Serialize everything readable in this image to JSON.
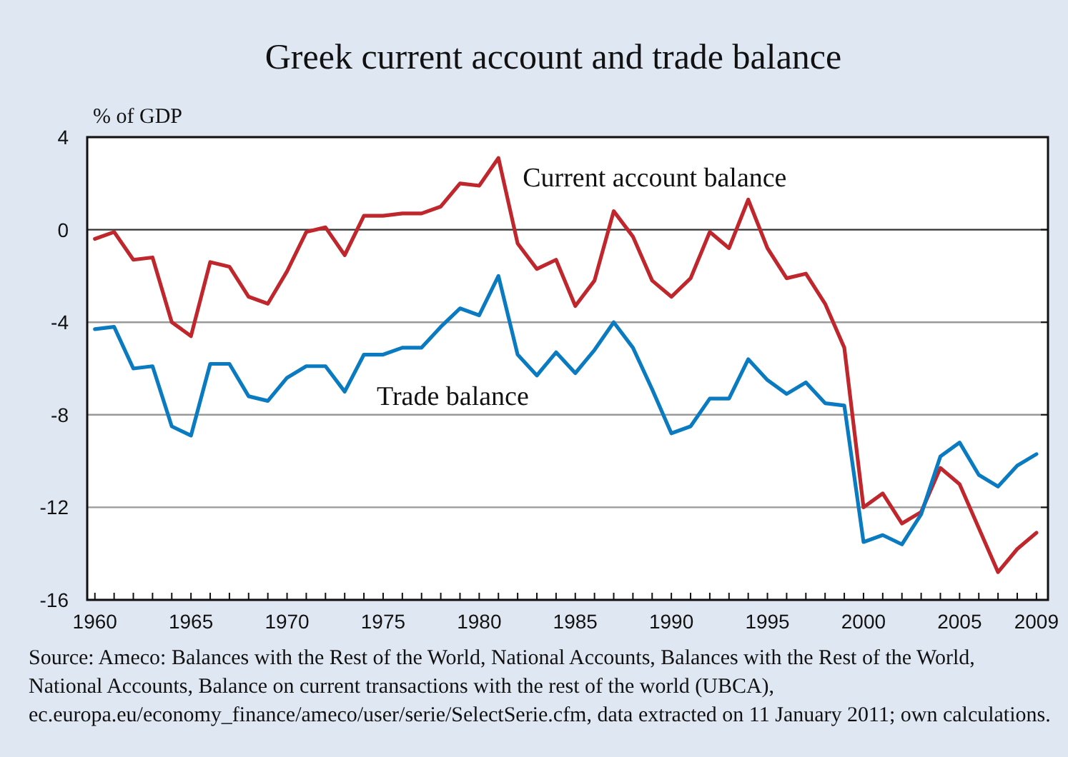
{
  "chart_data": {
    "type": "line",
    "title": "Greek current account and trade balance",
    "ylabel": "% of GDP",
    "x": [
      1960,
      1961,
      1962,
      1963,
      1964,
      1965,
      1966,
      1967,
      1968,
      1969,
      1970,
      1971,
      1972,
      1973,
      1974,
      1975,
      1976,
      1977,
      1978,
      1979,
      1980,
      1981,
      1982,
      1983,
      1984,
      1985,
      1986,
      1987,
      1988,
      1989,
      1990,
      1991,
      1992,
      1993,
      1994,
      1995,
      1996,
      1997,
      1998,
      1999,
      2000,
      2001,
      2002,
      2003,
      2004,
      2005,
      2006,
      2007,
      2008,
      2009
    ],
    "series": [
      {
        "name": "Current account balance",
        "color": "#c0272d",
        "values": [
          -0.4,
          -0.1,
          -1.3,
          -1.2,
          -4.0,
          -4.6,
          -1.4,
          -1.6,
          -2.9,
          -3.2,
          -1.8,
          -0.1,
          0.1,
          -1.1,
          0.6,
          0.6,
          0.7,
          0.7,
          1.0,
          2.0,
          1.9,
          3.1,
          -0.6,
          -1.7,
          -1.3,
          -3.3,
          -2.2,
          0.8,
          -0.3,
          -2.2,
          -2.9,
          -2.1,
          -0.1,
          -0.8,
          1.3,
          -0.8,
          -2.1,
          -1.9,
          -3.2,
          -5.1,
          -12.0,
          -11.4,
          -12.7,
          -12.2,
          -10.3,
          -11.0,
          -12.9,
          -14.8,
          -13.8,
          -13.1
        ]
      },
      {
        "name": "Trade balance",
        "color": "#0a7bc1",
        "values": [
          -4.3,
          -4.2,
          -6.0,
          -5.9,
          -8.5,
          -8.9,
          -5.8,
          -5.8,
          -7.2,
          -7.4,
          -6.4,
          -5.9,
          -5.9,
          -7.0,
          -5.4,
          -5.4,
          -5.1,
          -5.1,
          -4.2,
          -3.4,
          -3.7,
          -2.0,
          -5.4,
          -6.3,
          -5.3,
          -6.2,
          -5.2,
          -4.0,
          -5.1,
          -6.9,
          -8.8,
          -8.5,
          -7.3,
          -7.3,
          -5.6,
          -6.5,
          -7.1,
          -6.6,
          -7.5,
          -7.6,
          -13.5,
          -13.2,
          -13.6,
          -12.3,
          -9.8,
          -9.2,
          -10.6,
          -11.1,
          -10.2,
          -9.7
        ]
      }
    ],
    "xlim": [
      1959.6,
      2009.6
    ],
    "xticks": [
      1960,
      {
        "value": 1961,
        "label": null
      },
      {
        "value": 1962,
        "label": null
      },
      {
        "value": 1963,
        "label": null
      },
      {
        "value": 1964,
        "label": null
      },
      1965,
      {
        "value": 1966,
        "label": null
      },
      {
        "value": 1967,
        "label": null
      },
      {
        "value": 1968,
        "label": null
      },
      {
        "value": 1969,
        "label": null
      },
      1970,
      {
        "value": 1971,
        "label": null
      },
      {
        "value": 1972,
        "label": null
      },
      {
        "value": 1973,
        "label": null
      },
      {
        "value": 1974,
        "label": null
      },
      1975,
      {
        "value": 1976,
        "label": null
      },
      {
        "value": 1977,
        "label": null
      },
      {
        "value": 1978,
        "label": null
      },
      {
        "value": 1979,
        "label": null
      },
      1980,
      {
        "value": 1981,
        "label": null
      },
      {
        "value": 1982,
        "label": null
      },
      {
        "value": 1983,
        "label": null
      },
      {
        "value": 1984,
        "label": null
      },
      1985,
      {
        "value": 1986,
        "label": null
      },
      {
        "value": 1987,
        "label": null
      },
      {
        "value": 1988,
        "label": null
      },
      {
        "value": 1989,
        "label": null
      },
      1990,
      {
        "value": 1991,
        "label": null
      },
      {
        "value": 1992,
        "label": null
      },
      {
        "value": 1993,
        "label": null
      },
      {
        "value": 1994,
        "label": null
      },
      1995,
      {
        "value": 1996,
        "label": null
      },
      {
        "value": 1997,
        "label": null
      },
      {
        "value": 1998,
        "label": null
      },
      {
        "value": 1999,
        "label": null
      },
      2000,
      {
        "value": 2001,
        "label": null
      },
      {
        "value": 2002,
        "label": null
      },
      {
        "value": 2003,
        "label": null
      },
      {
        "value": 2004,
        "label": null
      },
      2005,
      {
        "value": 2006,
        "label": null
      },
      {
        "value": 2007,
        "label": null
      },
      {
        "value": 2008,
        "label": null
      },
      2009
    ],
    "ylim": [
      -16,
      4
    ],
    "yticks": [
      -16,
      -12,
      -8,
      -4,
      0,
      4
    ],
    "grid": "y",
    "legend": false,
    "marker": "none",
    "line_style": "solid",
    "annotations": [
      "Source: Ameco: Balances with the Rest of the World, National Accounts, Balances with the Rest of the World, National Accounts, Balance on current transactions with the rest of the world (UBCA), ec.europa.eu/economy_finance/ameco/user/serie/SelectSerie.cfm, data extracted on 11 January 2011; own calculations."
    ]
  }
}
